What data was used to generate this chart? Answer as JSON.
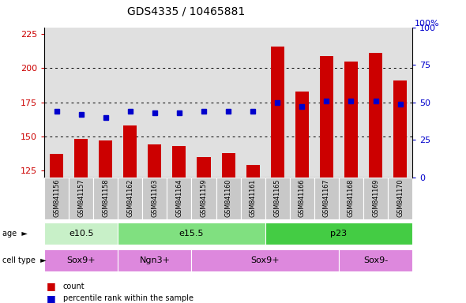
{
  "title": "GDS4335 / 10465881",
  "samples": [
    "GSM841156",
    "GSM841157",
    "GSM841158",
    "GSM841162",
    "GSM841163",
    "GSM841164",
    "GSM841159",
    "GSM841160",
    "GSM841161",
    "GSM841165",
    "GSM841166",
    "GSM841167",
    "GSM841168",
    "GSM841169",
    "GSM841170"
  ],
  "bar_values": [
    137,
    148,
    147,
    158,
    144,
    143,
    135,
    138,
    129,
    216,
    183,
    209,
    205,
    211,
    191
  ],
  "dot_values": [
    44,
    42,
    40,
    44,
    43,
    43,
    44,
    44,
    44,
    50,
    47,
    51,
    51,
    51,
    49
  ],
  "ylim_left": [
    120,
    230
  ],
  "ylim_right": [
    0,
    100
  ],
  "yticks_left": [
    125,
    150,
    175,
    200,
    225
  ],
  "yticks_right": [
    0,
    25,
    50,
    75,
    100
  ],
  "bar_color": "#cc0000",
  "dot_color": "#0000cc",
  "bar_width": 0.55,
  "age_groups": [
    {
      "label": "e10.5",
      "start": 0,
      "end": 3,
      "color": "#c8f0c8"
    },
    {
      "label": "e15.5",
      "start": 3,
      "end": 9,
      "color": "#80e080"
    },
    {
      "label": "p23",
      "start": 9,
      "end": 15,
      "color": "#44cc44"
    }
  ],
  "cell_type_groups": [
    {
      "label": "Sox9+",
      "start": 0,
      "end": 3,
      "color": "#dd88dd"
    },
    {
      "label": "Ngn3+",
      "start": 3,
      "end": 6,
      "color": "#dd88dd"
    },
    {
      "label": "Sox9+",
      "start": 6,
      "end": 12,
      "color": "#dd88dd"
    },
    {
      "label": "Sox9-",
      "start": 12,
      "end": 15,
      "color": "#dd88dd"
    }
  ],
  "grid_color": "#000000",
  "bg_color": "#ffffff",
  "plot_bg_color": "#e0e0e0",
  "xlabel_bg_color": "#c8c8c8",
  "legend_count_label": "count",
  "legend_pct_label": "percentile rank within the sample",
  "title_fontsize": 10,
  "axis_fontsize": 8,
  "label_fontsize": 8,
  "tick_fontsize": 8
}
